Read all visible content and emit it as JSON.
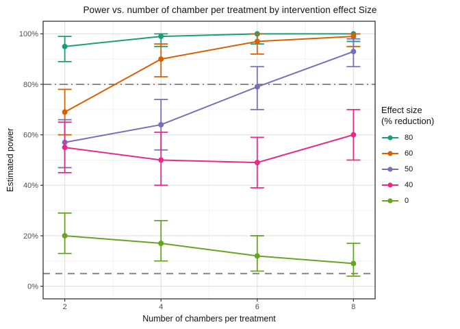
{
  "chart_data": {
    "type": "line",
    "title": "Power vs. number of chamber per treatment by intervention effect Size",
    "xlabel": "Number of chambers per treatment",
    "ylabel": "Estimated power",
    "x": [
      2,
      4,
      6,
      8
    ],
    "xlim": [
      1.55,
      8.45
    ],
    "ylim": [
      -5,
      105
    ],
    "x_ticks": {
      "values": [
        2,
        4,
        6,
        8
      ],
      "labels": [
        "2",
        "4",
        "6",
        "8"
      ]
    },
    "y_ticks": {
      "values": [
        0,
        20,
        40,
        60,
        80,
        100
      ],
      "labels": [
        "0%",
        "20%",
        "40%",
        "60%",
        "80%",
        "100%"
      ]
    },
    "grid": {
      "show": true,
      "minor_x": [
        3,
        5,
        7
      ],
      "minor_y": [
        10,
        30,
        50,
        70,
        90
      ],
      "major_color": "#e2e2e2",
      "minor_color": "#f1f1f1",
      "panel_border_color": "#333333"
    },
    "reference_lines": [
      {
        "y": 80,
        "style": "dotdash",
        "color": "#595959"
      },
      {
        "y": 5,
        "style": "dashed",
        "color": "#8a8a8a"
      }
    ],
    "legend": {
      "position": "right",
      "title_lines": [
        "Effect size",
        "(% reduction)"
      ]
    },
    "series": [
      {
        "name": "80",
        "color": "#1b9e77",
        "values": [
          95,
          99,
          100,
          100
        ],
        "lower": [
          89,
          95,
          96,
          97
        ],
        "upper": [
          99,
          100,
          100,
          100
        ]
      },
      {
        "name": "60",
        "color": "#d95f02",
        "values": [
          69,
          90,
          97,
          99
        ],
        "lower": [
          60,
          83,
          92,
          95
        ],
        "upper": [
          78,
          96,
          100,
          100
        ]
      },
      {
        "name": "50",
        "color": "#7570b3",
        "values": [
          57,
          64,
          79,
          93
        ],
        "lower": [
          47,
          54,
          70,
          87
        ],
        "upper": [
          66,
          74,
          87,
          98
        ]
      },
      {
        "name": "40",
        "color": "#e7298a",
        "values": [
          55,
          50,
          49,
          60
        ],
        "lower": [
          45,
          40,
          39,
          50
        ],
        "upper": [
          65,
          61,
          59,
          70
        ]
      },
      {
        "name": "0",
        "color": "#66a61e",
        "values": [
          20,
          17,
          12,
          9
        ],
        "lower": [
          13,
          10,
          6,
          4
        ],
        "upper": [
          29,
          26,
          20,
          17
        ]
      }
    ],
    "axis_text_color": "#4d4d4d"
  }
}
